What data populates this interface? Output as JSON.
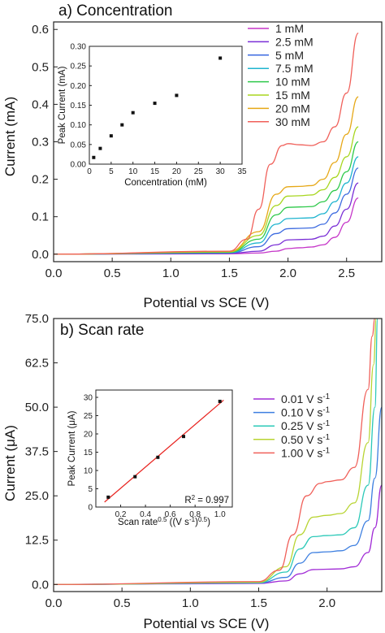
{
  "chart_data": [
    {
      "panel_label": "a) Concentration",
      "type": "line",
      "xlabel": "Potential vs SCE (V)",
      "ylabel": "Current (mA)",
      "xlim": [
        0,
        2.8
      ],
      "ylim": [
        -0.02,
        0.62
      ],
      "xticks": [
        "0.0",
        "0.5",
        "1.0",
        "1.5",
        "2.0",
        "2.5"
      ],
      "yticks": [
        "0.0",
        "0.1",
        "0.2",
        "0.3",
        "0.4",
        "0.5",
        "0.6"
      ],
      "legend_position": "right",
      "series": [
        {
          "name": "1 mM",
          "color": "#c535c8",
          "x": [
            0,
            1.5,
            1.75,
            1.9,
            2.0,
            2.1,
            2.2,
            2.3,
            2.4,
            2.5,
            2.6
          ],
          "y": [
            0,
            0.001,
            0.003,
            0.008,
            0.015,
            0.017,
            0.019,
            0.025,
            0.045,
            0.085,
            0.15
          ]
        },
        {
          "name": "2.5 mM",
          "color": "#7a2fd6",
          "x": [
            0,
            1.5,
            1.75,
            1.9,
            2.0,
            2.1,
            2.2,
            2.3,
            2.4,
            2.5,
            2.6
          ],
          "y": [
            0,
            0.002,
            0.008,
            0.025,
            0.038,
            0.039,
            0.04,
            0.048,
            0.075,
            0.12,
            0.19
          ]
        },
        {
          "name": "5 mM",
          "color": "#3d6be0",
          "x": [
            0,
            1.5,
            1.75,
            1.9,
            2.0,
            2.1,
            2.2,
            2.3,
            2.4,
            2.5,
            2.6
          ],
          "y": [
            0,
            0.003,
            0.02,
            0.055,
            0.068,
            0.069,
            0.07,
            0.08,
            0.11,
            0.16,
            0.23
          ]
        },
        {
          "name": "7.5 mM",
          "color": "#1fb4cf",
          "x": [
            0,
            1.5,
            1.75,
            1.9,
            2.0,
            2.1,
            2.2,
            2.3,
            2.4,
            2.5,
            2.6
          ],
          "y": [
            0,
            0.004,
            0.03,
            0.08,
            0.095,
            0.096,
            0.097,
            0.108,
            0.14,
            0.19,
            0.26
          ]
        },
        {
          "name": "10 mM",
          "color": "#2ec94a",
          "x": [
            0,
            1.5,
            1.75,
            1.9,
            2.0,
            2.1,
            2.2,
            2.3,
            2.4,
            2.5,
            2.6
          ],
          "y": [
            0,
            0.005,
            0.04,
            0.105,
            0.125,
            0.126,
            0.127,
            0.14,
            0.17,
            0.22,
            0.3
          ]
        },
        {
          "name": "15 mM",
          "color": "#a8d61f",
          "x": [
            0,
            1.5,
            1.75,
            1.9,
            2.0,
            2.1,
            2.2,
            2.3,
            2.4,
            2.5,
            2.6
          ],
          "y": [
            0,
            0.006,
            0.05,
            0.13,
            0.155,
            0.156,
            0.158,
            0.172,
            0.205,
            0.26,
            0.34
          ]
        },
        {
          "name": "20 mM",
          "color": "#e6a817",
          "x": [
            0,
            1.5,
            1.75,
            1.9,
            2.0,
            2.1,
            2.2,
            2.3,
            2.4,
            2.5,
            2.6
          ],
          "y": [
            0,
            0.007,
            0.06,
            0.16,
            0.18,
            0.181,
            0.183,
            0.2,
            0.245,
            0.32,
            0.42
          ]
        },
        {
          "name": "30 mM",
          "color": "#f0605a",
          "x": [
            0,
            1.5,
            1.65,
            1.75,
            1.85,
            1.95,
            2.0,
            2.1,
            2.2,
            2.3,
            2.4,
            2.5,
            2.6
          ],
          "y": [
            0,
            0.008,
            0.04,
            0.12,
            0.24,
            0.29,
            0.295,
            0.292,
            0.29,
            0.3,
            0.34,
            0.43,
            0.59
          ]
        }
      ],
      "inset": {
        "type": "scatter",
        "xlabel": "Concentration (mM)",
        "ylabel": "Peak Current (mA)",
        "xlim": [
          0,
          35
        ],
        "ylim": [
          0,
          0.3
        ],
        "xticks": [
          "0",
          "5",
          "10",
          "15",
          "20",
          "25",
          "30",
          "35"
        ],
        "yticks": [
          "0.00",
          "0.05",
          "0.10",
          "0.15",
          "0.20",
          "0.25",
          "0.30"
        ],
        "x": [
          1,
          2.5,
          5,
          7.5,
          10,
          15,
          20,
          30
        ],
        "y": [
          0.017,
          0.04,
          0.072,
          0.1,
          0.131,
          0.155,
          0.175,
          0.27
        ]
      }
    },
    {
      "panel_label": "b) Scan rate",
      "type": "line",
      "xlabel": "Potential vs SCE (V)",
      "ylabel": "Current (μA)",
      "xlim": [
        0,
        2.4
      ],
      "ylim": [
        -2,
        75
      ],
      "xticks": [
        "0.0",
        "0.5",
        "1.0",
        "1.5",
        "2.0"
      ],
      "yticks": [
        "0.0",
        "12.5",
        "25.0",
        "37.5",
        "50.0",
        "62.5",
        "75.0"
      ],
      "legend_position": "right",
      "series": [
        {
          "name": "0.01 V s",
          "sup": "-1",
          "color": "#a12bd6",
          "x": [
            0,
            1.5,
            1.7,
            1.8,
            1.9,
            2.0,
            2.1,
            2.2,
            2.3,
            2.35,
            2.4
          ],
          "y": [
            0,
            0.3,
            1.0,
            3.0,
            4.2,
            4.3,
            4.4,
            5.0,
            9.0,
            16.0,
            28.0
          ]
        },
        {
          "name": "0.10 V s",
          "sup": "-1",
          "color": "#3d7fe0",
          "x": [
            0,
            1.5,
            1.7,
            1.8,
            1.9,
            2.0,
            2.1,
            2.2,
            2.3,
            2.35,
            2.4
          ],
          "y": [
            0,
            0.4,
            2.0,
            6.0,
            9.0,
            9.2,
            9.5,
            11.0,
            18.0,
            30.0,
            50.0
          ]
        },
        {
          "name": "0.25 V s",
          "sup": "-1",
          "color": "#2cc9b8",
          "x": [
            0,
            1.5,
            1.7,
            1.8,
            1.9,
            2.0,
            2.1,
            2.2,
            2.3,
            2.35,
            2.37
          ],
          "y": [
            0,
            0.5,
            3.5,
            10.0,
            13.5,
            13.8,
            14.0,
            16.0,
            28.0,
            50.0,
            75.0
          ]
        },
        {
          "name": "0.50 V s",
          "sup": "-1",
          "color": "#b8d432",
          "x": [
            0,
            1.5,
            1.7,
            1.8,
            1.9,
            2.0,
            2.1,
            2.2,
            2.3,
            2.34,
            2.36
          ],
          "y": [
            0,
            0.6,
            5.0,
            14.0,
            19.0,
            19.5,
            20.0,
            23.0,
            40.0,
            62.0,
            75.0
          ]
        },
        {
          "name": "1.00 V s",
          "sup": "-1",
          "color": "#f0605a",
          "x": [
            0,
            1.5,
            1.65,
            1.75,
            1.85,
            1.95,
            2.0,
            2.1,
            2.2,
            2.3,
            2.33,
            2.35
          ],
          "y": [
            0,
            0.8,
            4.0,
            14.0,
            25.0,
            28.5,
            29.0,
            29.5,
            33.0,
            55.0,
            70.0,
            75.0
          ]
        }
      ],
      "inset": {
        "type": "scatter",
        "xlabel": "Scan rate",
        "xlabel_sup": "0.5",
        "xlabel_units": "((V s",
        "xlabel_units_sup": "-1",
        "xlabel_units_close": ")",
        "xlabel_units_close_sup": "0.5",
        "xlabel_units_end": ")",
        "ylabel": "Peak Current (μA)",
        "xlim": [
          0,
          1.1
        ],
        "ylim": [
          0,
          32
        ],
        "xticks": [
          "0.2",
          "0.4",
          "0.6",
          "0.8",
          "1.0"
        ],
        "yticks": [
          "0",
          "5",
          "10",
          "15",
          "20",
          "25",
          "30"
        ],
        "x": [
          0.1,
          0.316,
          0.5,
          0.707,
          1.0
        ],
        "y": [
          2.7,
          8.3,
          13.6,
          19.3,
          28.9
        ],
        "fit_line_color": "#e8231f",
        "r2_label": "R",
        "r2_sup": "2",
        "r2_value": " = 0.997"
      }
    }
  ]
}
